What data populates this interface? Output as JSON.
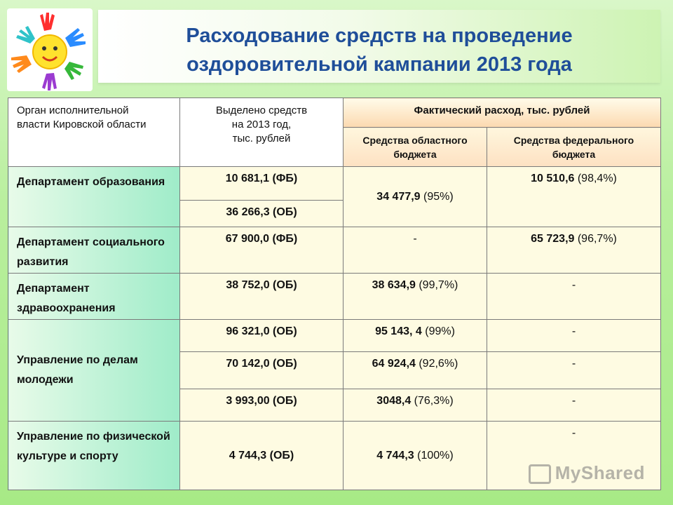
{
  "title_line1": "Расходование средств на проведение",
  "title_line2": "оздоровительной кампании 2013 года",
  "header": {
    "col1": "Орган исполнительной власти  Кировской области",
    "col2_line1": "Выделено средств",
    "col2_line2": "на 2013 год,",
    "col2_line3": "тыс. рублей",
    "fact": "Фактический расход, тыс. рублей",
    "sub1": "Средства областного бюджета",
    "sub2": "Средства федерального бюджета"
  },
  "rows": {
    "edu": {
      "org": "Департамент образования",
      "alloc1": "10 681,1  (ФБ)",
      "alloc2": "36 266,3   (ОБ)",
      "reg_val": "34 477,9",
      "reg_pct": " (95%)",
      "fed_val": "10 510,6",
      "fed_pct": "  (98,4%)"
    },
    "social": {
      "org": "Департамент социального развития",
      "alloc": "67 900,0     (ФБ)",
      "reg": "-",
      "fed_val": "65 723,9",
      "fed_pct": "  (96,7%)"
    },
    "health": {
      "org": "Департамент здравоохранения",
      "alloc": "38 752,0 (ОБ)",
      "reg_val": "38 634,9",
      "reg_pct": "  (99,7%)",
      "fed": "-"
    },
    "youth": {
      "org": "Управление по делам молодежи",
      "lines": [
        {
          "alloc": "96 321,0 (ОБ)",
          "reg_val": "95 143, 4",
          "reg_pct": " (99%)",
          "fed": "-"
        },
        {
          "alloc": "70 142,0  (ОБ)",
          "reg_val": "64 924,4",
          "reg_pct": "  (92,6%)",
          "fed": "-"
        },
        {
          "alloc": "3 993,00  (ОБ)",
          "reg_val": "3048,4",
          "reg_pct": "  (76,3%)",
          "fed": "-"
        }
      ]
    },
    "sport": {
      "org": "Управление по физической культуре и спорту",
      "alloc": "4 744,3  (ОБ)",
      "reg_val": "4 744,3",
      "reg_pct": " (100%)",
      "fed": "-"
    }
  },
  "watermark": "MyShared",
  "colors": {
    "title": "#1f4e99",
    "org_cell": "#9fecc9",
    "value_cell": "#fefbe2"
  }
}
